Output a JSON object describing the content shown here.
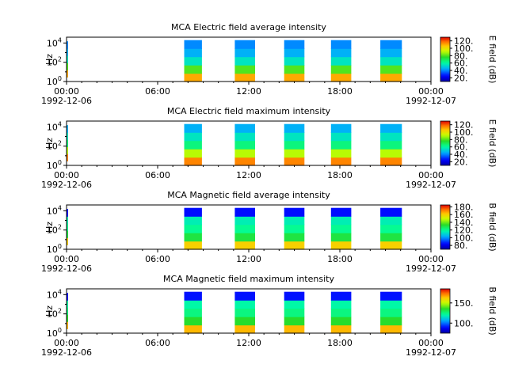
{
  "figure": {
    "panels": [
      {
        "title": "MCA  Electric field average intensity",
        "ylabel": "Hz",
        "ytick_labels": [
          "10^0",
          "10^2",
          "10^4"
        ],
        "xtick_labels": [
          "00:00\n1992-12-06",
          "06:00",
          "12:00",
          "18:00",
          "00:00\n1992-12-07"
        ],
        "colorbar_label": "E field (dB)",
        "colorbar_ticks": [
          "20.",
          "40.",
          "60.",
          "80.",
          "100.",
          "120."
        ]
      },
      {
        "title": "MCA  Electric field maximum intensity",
        "ylabel": "Hz",
        "ytick_labels": [
          "10^0",
          "10^2",
          "10^4"
        ],
        "xtick_labels": [
          "00:00\n1992-12-06",
          "06:00",
          "12:00",
          "18:00",
          "00:00\n1992-12-07"
        ],
        "colorbar_label": "E field (dB)",
        "colorbar_ticks": [
          "20.",
          "40.",
          "60.",
          "80.",
          "100.",
          "120."
        ]
      },
      {
        "title": "MCA  Magnetic field average intensity",
        "ylabel": "Hz",
        "ytick_labels": [
          "10^0",
          "10^2",
          "10^4"
        ],
        "xtick_labels": [
          "00:00\n1992-12-06",
          "06:00",
          "12:00",
          "18:00",
          "00:00\n1992-12-07"
        ],
        "colorbar_label": "B field (dB)",
        "colorbar_ticks": [
          "80.",
          "100.",
          "120.",
          "140.",
          "160.",
          "180."
        ]
      },
      {
        "title": "MCA  Magnetic field maximum intensity",
        "ylabel": "Hz",
        "ytick_labels": [
          "10^0",
          "10^2",
          "10^4"
        ],
        "xtick_labels": [
          "00:00\n1992-12-06",
          "06:00",
          "12:00",
          "18:00",
          "00:00\n1992-12-07"
        ],
        "colorbar_label": "B field (dB)",
        "colorbar_ticks": [
          "100.",
          "150."
        ]
      }
    ]
  },
  "chart_data": [
    {
      "type": "heatmap",
      "title": "MCA  Electric field average intensity",
      "xlabel": "",
      "ylabel": "Hz",
      "xlim": [
        "1992-12-06T00:00",
        "1992-12-07T00:00"
      ],
      "ylim": [
        1,
        40000
      ],
      "yscale": "log",
      "zlabel": "E field (dB)",
      "zlim": [
        10,
        130
      ],
      "colormap": "rainbow",
      "x_ticks": [
        "00:00",
        "06:00",
        "12:00",
        "18:00",
        "00:00"
      ],
      "data_intervals": [
        {
          "start": "1992-12-06T00:00",
          "end": "1992-12-06T00:05",
          "f_min": 3,
          "f_max": 15000
        },
        {
          "start": "1992-12-06T07:45",
          "end": "1992-12-06T08:55",
          "f_min": 1,
          "f_max": 20000
        },
        {
          "start": "1992-12-06T11:05",
          "end": "1992-12-06T12:25",
          "f_min": 1,
          "f_max": 20000
        },
        {
          "start": "1992-12-06T14:20",
          "end": "1992-12-06T15:40",
          "f_min": 1,
          "f_max": 20000
        },
        {
          "start": "1992-12-06T17:25",
          "end": "1992-12-06T18:45",
          "f_min": 1,
          "f_max": 20000
        },
        {
          "start": "1992-12-06T20:40",
          "end": "1992-12-06T22:05",
          "f_min": 1,
          "f_max": 20000
        }
      ],
      "intensity_profile_low_to_high": [
        110,
        80,
        55,
        45,
        40
      ]
    },
    {
      "type": "heatmap",
      "title": "MCA  Electric field maximum intensity",
      "xlabel": "",
      "ylabel": "Hz",
      "xlim": [
        "1992-12-06T00:00",
        "1992-12-07T00:00"
      ],
      "ylim": [
        1,
        40000
      ],
      "yscale": "log",
      "zlabel": "E field (dB)",
      "zlim": [
        10,
        130
      ],
      "colormap": "rainbow",
      "x_ticks": [
        "00:00",
        "06:00",
        "12:00",
        "18:00",
        "00:00"
      ],
      "data_intervals": [
        {
          "start": "1992-12-06T00:00",
          "end": "1992-12-06T00:05",
          "f_min": 3,
          "f_max": 15000
        },
        {
          "start": "1992-12-06T07:45",
          "end": "1992-12-06T08:55",
          "f_min": 1,
          "f_max": 20000
        },
        {
          "start": "1992-12-06T11:05",
          "end": "1992-12-06T12:25",
          "f_min": 1,
          "f_max": 20000
        },
        {
          "start": "1992-12-06T14:20",
          "end": "1992-12-06T15:40",
          "f_min": 1,
          "f_max": 20000
        },
        {
          "start": "1992-12-06T17:25",
          "end": "1992-12-06T18:45",
          "f_min": 1,
          "f_max": 20000
        },
        {
          "start": "1992-12-06T20:40",
          "end": "1992-12-06T22:05",
          "f_min": 1,
          "f_max": 20000
        }
      ],
      "intensity_profile_low_to_high": [
        115,
        90,
        65,
        55,
        45
      ]
    },
    {
      "type": "heatmap",
      "title": "MCA  Magnetic field average intensity",
      "xlabel": "",
      "ylabel": "Hz",
      "xlim": [
        "1992-12-06T00:00",
        "1992-12-07T00:00"
      ],
      "ylim": [
        1,
        40000
      ],
      "yscale": "log",
      "zlabel": "B field (dB)",
      "zlim": [
        70,
        185
      ],
      "colormap": "rainbow",
      "x_ticks": [
        "00:00",
        "06:00",
        "12:00",
        "18:00",
        "00:00"
      ],
      "data_intervals": [
        {
          "start": "1992-12-06T00:00",
          "end": "1992-12-06T00:05",
          "f_min": 3,
          "f_max": 15000
        },
        {
          "start": "1992-12-06T07:45",
          "end": "1992-12-06T08:55",
          "f_min": 1,
          "f_max": 20000
        },
        {
          "start": "1992-12-06T11:05",
          "end": "1992-12-06T12:25",
          "f_min": 1,
          "f_max": 20000
        },
        {
          "start": "1992-12-06T14:20",
          "end": "1992-12-06T15:40",
          "f_min": 1,
          "f_max": 20000
        },
        {
          "start": "1992-12-06T17:25",
          "end": "1992-12-06T18:45",
          "f_min": 1,
          "f_max": 20000
        },
        {
          "start": "1992-12-06T20:40",
          "end": "1992-12-06T22:05",
          "f_min": 1,
          "f_max": 20000
        }
      ],
      "intensity_profile_low_to_high": [
        160,
        130,
        120,
        115,
        85
      ]
    },
    {
      "type": "heatmap",
      "title": "MCA  Magnetic field maximum intensity",
      "xlabel": "",
      "ylabel": "Hz",
      "xlim": [
        "1992-12-06T00:00",
        "1992-12-07T00:00"
      ],
      "ylim": [
        1,
        40000
      ],
      "yscale": "log",
      "zlabel": "B field (dB)",
      "zlim": [
        75,
        185
      ],
      "colormap": "rainbow",
      "x_ticks": [
        "00:00",
        "06:00",
        "12:00",
        "18:00",
        "00:00"
      ],
      "data_intervals": [
        {
          "start": "1992-12-06T00:00",
          "end": "1992-12-06T00:05",
          "f_min": 3,
          "f_max": 15000
        },
        {
          "start": "1992-12-06T07:45",
          "end": "1992-12-06T08:55",
          "f_min": 1,
          "f_max": 20000
        },
        {
          "start": "1992-12-06T11:05",
          "end": "1992-12-06T12:25",
          "f_min": 1,
          "f_max": 20000
        },
        {
          "start": "1992-12-06T14:20",
          "end": "1992-12-06T15:40",
          "f_min": 1,
          "f_max": 20000
        },
        {
          "start": "1992-12-06T17:25",
          "end": "1992-12-06T18:45",
          "f_min": 1,
          "f_max": 20000
        },
        {
          "start": "1992-12-06T20:40",
          "end": "1992-12-06T22:05",
          "f_min": 1,
          "f_max": 20000
        }
      ],
      "intensity_profile_low_to_high": [
        165,
        135,
        125,
        120,
        90
      ]
    }
  ]
}
